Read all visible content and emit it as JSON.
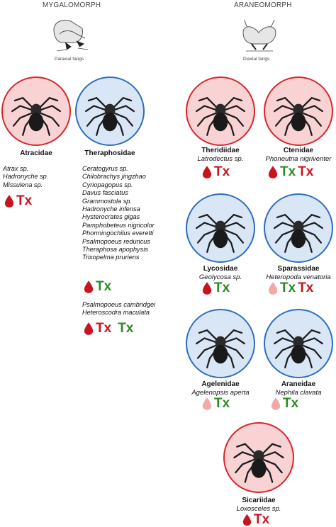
{
  "headers": {
    "mygalomorph": "MYGALOMORPH",
    "araneomorph": "ARANEOMORPH",
    "paraxial": "Paraxial fangs",
    "diaxial": "Diaxial fangs"
  },
  "families": {
    "atracidae": {
      "name": "Atracidae"
    },
    "theraphosidae": {
      "name": "Theraphosidae"
    },
    "theridiidae": {
      "name": "Theridiidae",
      "species": "Latrodectus sp."
    },
    "ctenidae": {
      "name": "Ctenidae",
      "species": "Phoneutria nigriventer"
    },
    "lycosidae": {
      "name": "Lycosidae",
      "species": "Geolycosa sp."
    },
    "sparassidae": {
      "name": "Sparassidae",
      "species": "Heteropoda venatoria"
    },
    "agelenidae": {
      "name": "Agelenidae",
      "species": "Agelenopsis aperta"
    },
    "araneidae": {
      "name": "Araneidae",
      "species": "Nephila clavata"
    },
    "sicariidae": {
      "name": "Sicariidae",
      "species": "Loxosceles sp."
    }
  },
  "lists": {
    "atracidae": [
      "Atrax sp.",
      "Hadronyche sp.",
      "Missulena sp."
    ],
    "theraphosidae_a": [
      "Ceratogyrus sp.",
      "Chilobrachys jingzhao",
      "Cyriopagopus sp.",
      "Davus fasciatus",
      "Grammostola sp.",
      "Hadronyche infensa",
      "Hysterocrates gigas",
      "Pamphobeteus nigricolor",
      "Phormingochilus everetti",
      "Psalmopoeus reduncus",
      "Theraphosa apophysis",
      "Trixopelma pruriens"
    ],
    "theraphosidae_b": [
      "Psalmopoeus cambridgei",
      "Heteroscodra maculata"
    ]
  },
  "tx_label": "Tx",
  "colors": {
    "red_circle_fill": "#f9d3d3",
    "red_circle_border": "#d7262c",
    "blue_circle_fill": "#d9e6f6",
    "blue_circle_border": "#2e6dbf",
    "drop_dark": "#c8141e",
    "drop_light": "#f2a9aa",
    "tx_red": "#c8141e",
    "tx_green": "#2a8a22"
  },
  "icons": {
    "drop": "blood-drop-icon",
    "spider": "spider-silhouette",
    "chelicerae": "fang-diagram"
  }
}
